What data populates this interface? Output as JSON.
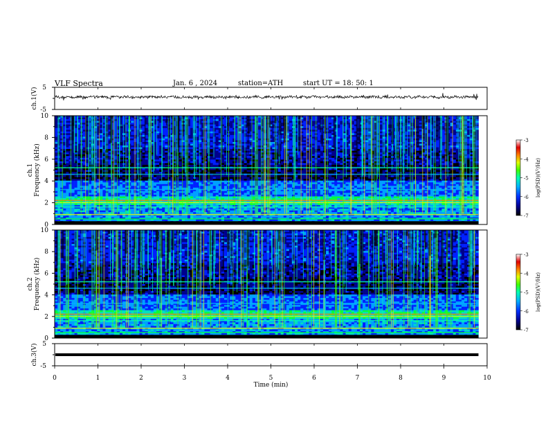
{
  "header": {
    "title": "VLF  Spectra",
    "date": "Jan.  6  ,  2024",
    "station": "station=ATH",
    "start_ut": "start  UT  =    18:  50:  1"
  },
  "chart_data": [
    {
      "type": "line",
      "name": "ch1-waveform",
      "ylabel": "ch.1(V)",
      "ytick_labels": [
        "5",
        "-5"
      ],
      "ylim": [
        -5,
        5
      ],
      "xlim": [
        0,
        10
      ],
      "x_unit": "min",
      "description_level": 0.6,
      "active_until_x": 9.8
    },
    {
      "type": "heatmap",
      "name": "ch1-spectrogram",
      "ylabel": "ch.1\nFrequency (kHz)",
      "yticks": [
        0,
        2,
        4,
        6,
        8,
        10
      ],
      "ylim": [
        0,
        10
      ],
      "xlim": [
        0,
        10
      ],
      "active_until_x": 9.8,
      "colorbar": {
        "label": "log(PSD)(V²/Hz)",
        "ticks": [
          "-3",
          "-4",
          "-5",
          "-6",
          "-7"
        ],
        "range": [
          -7,
          -3
        ]
      }
    },
    {
      "type": "heatmap",
      "name": "ch2-spectrogram",
      "ylabel": "ch.2\nFrequency (kHz)",
      "yticks": [
        0,
        2,
        4,
        6,
        8,
        10
      ],
      "ylim": [
        0,
        10
      ],
      "xlim": [
        0,
        10
      ],
      "active_until_x": 9.8,
      "colorbar": {
        "label": "log(PSD)(V²/Hz)",
        "ticks": [
          "-3",
          "-4",
          "-5",
          "-6",
          "-7"
        ],
        "range": [
          -7,
          -3
        ]
      }
    },
    {
      "type": "line",
      "name": "ch3-waveform",
      "ylabel": "ch.3(V)",
      "ytick_labels": [
        "5",
        "-5"
      ],
      "ylim": [
        -5,
        5
      ],
      "level": 0,
      "xlim": [
        0,
        10
      ],
      "active_until_x": 9.8,
      "xlabel": "Time  (min)",
      "xticks": [
        0,
        1,
        2,
        3,
        4,
        5,
        6,
        7,
        8,
        9,
        10
      ]
    }
  ],
  "colors": {
    "frame": "#000000",
    "background": "#ffffff",
    "colormap": [
      "#000000",
      "#00008c",
      "#0020ff",
      "#00a0ff",
      "#00e0c0",
      "#00ff40",
      "#a0ff00",
      "#ffe000",
      "#ff6000",
      "#e00000",
      "#ffffff"
    ]
  }
}
